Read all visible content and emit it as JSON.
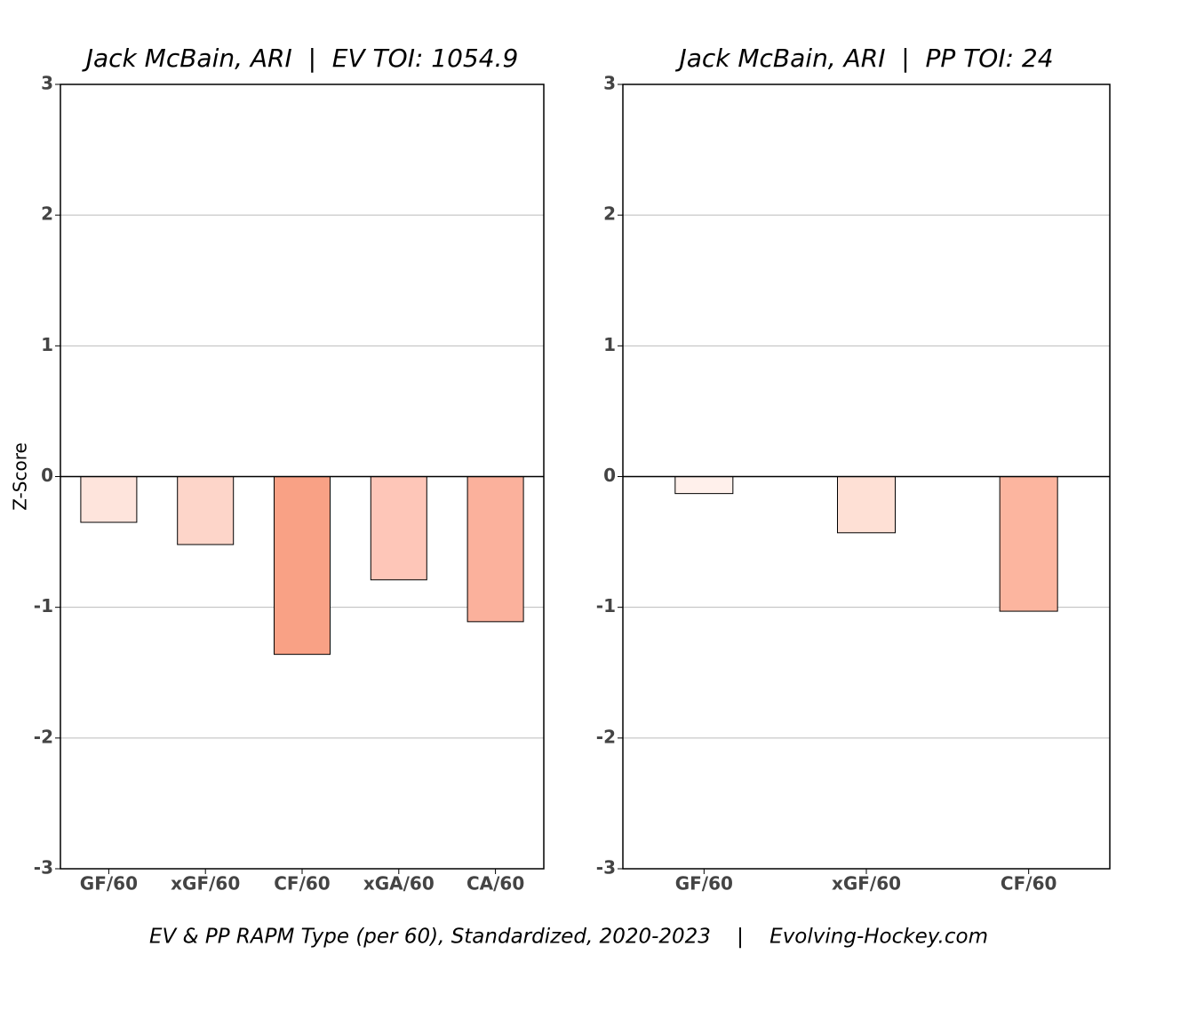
{
  "chart_data": [
    {
      "type": "bar",
      "title": "Jack McBain, ARI  |  EV TOI: 1054.9",
      "y_label": "Z-Score",
      "categories": [
        "GF/60",
        "xGF/60",
        "CF/60",
        "xGA/60",
        "CA/60"
      ],
      "values": [
        -0.35,
        -0.52,
        -1.36,
        -0.79,
        -1.11
      ],
      "colors": [
        "#fee4dc",
        "#fdd5c9",
        "#f9a185",
        "#fec6b8",
        "#fbb19c"
      ],
      "ylim": [
        -3,
        3
      ],
      "yticks": [
        -3,
        -2,
        -1,
        0,
        1,
        2,
        3
      ],
      "grid": true
    },
    {
      "type": "bar",
      "title": "Jack McBain, ARI  |  PP TOI: 24",
      "categories": [
        "GF/60",
        "xGF/60",
        "CF/60"
      ],
      "values": [
        -0.13,
        -0.43,
        -1.03
      ],
      "colors": [
        "#fff0eb",
        "#fee0d5",
        "#fcb59f"
      ],
      "ylim": [
        -3,
        3
      ],
      "yticks": [
        -3,
        -2,
        -1,
        0,
        1,
        2,
        3
      ],
      "grid": true
    }
  ],
  "caption": "EV & PP RAPM Type (per 60), Standardized, 2020-2023    |    Evolving-Hockey.com"
}
